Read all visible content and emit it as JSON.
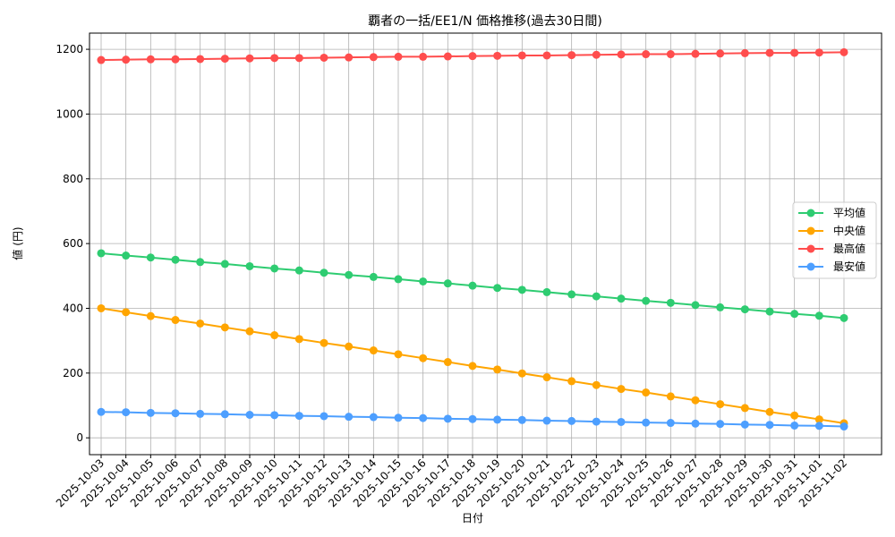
{
  "chart_data": {
    "type": "line",
    "title": "覇者の一括/EE1/N 価格推移(過去30日間)",
    "xlabel": "日付",
    "ylabel": "値 (円)",
    "ylim": [
      -52,
      1250
    ],
    "yticks": [
      0,
      200,
      400,
      600,
      800,
      1000,
      1200
    ],
    "grid": true,
    "legend_position": "center-right",
    "x": [
      "2025-10-03",
      "2025-10-04",
      "2025-10-05",
      "2025-10-06",
      "2025-10-07",
      "2025-10-08",
      "2025-10-09",
      "2025-10-10",
      "2025-10-11",
      "2025-10-12",
      "2025-10-13",
      "2025-10-14",
      "2025-10-15",
      "2025-10-16",
      "2025-10-17",
      "2025-10-18",
      "2025-10-19",
      "2025-10-20",
      "2025-10-21",
      "2025-10-22",
      "2025-10-23",
      "2025-10-24",
      "2025-10-25",
      "2025-10-26",
      "2025-10-27",
      "2025-10-28",
      "2025-10-29",
      "2025-10-30",
      "2025-10-31",
      "2025-11-01",
      "2025-11-02"
    ],
    "series": [
      {
        "name": "平均値",
        "color": "#2ecc71",
        "values": [
          570,
          563,
          557,
          550,
          543,
          537,
          530,
          523,
          517,
          510,
          503,
          497,
          490,
          483,
          477,
          470,
          463,
          457,
          450,
          443,
          437,
          430,
          423,
          417,
          410,
          403,
          397,
          390,
          383,
          377,
          370
        ]
      },
      {
        "name": "中央値",
        "color": "#ffa500",
        "values": [
          400,
          388,
          376,
          364,
          353,
          341,
          329,
          317,
          305,
          293,
          282,
          270,
          258,
          246,
          234,
          222,
          211,
          199,
          187,
          175,
          163,
          151,
          140,
          128,
          116,
          104,
          92,
          80,
          69,
          57,
          45
        ]
      },
      {
        "name": "最高値",
        "color": "#ff4d4d",
        "values": [
          1167,
          1168,
          1169,
          1169,
          1170,
          1171,
          1172,
          1173,
          1173,
          1174,
          1175,
          1176,
          1177,
          1177,
          1178,
          1179,
          1180,
          1181,
          1181,
          1182,
          1183,
          1184,
          1185,
          1185,
          1186,
          1187,
          1188,
          1189,
          1189,
          1190,
          1191
        ]
      },
      {
        "name": "最安値",
        "color": "#4d9fff",
        "values": [
          80,
          79,
          77,
          76,
          74,
          73,
          71,
          70,
          68,
          67,
          65,
          64,
          62,
          61,
          59,
          58,
          56,
          55,
          53,
          52,
          50,
          49,
          47,
          46,
          44,
          43,
          41,
          40,
          38,
          37,
          35
        ]
      }
    ]
  }
}
